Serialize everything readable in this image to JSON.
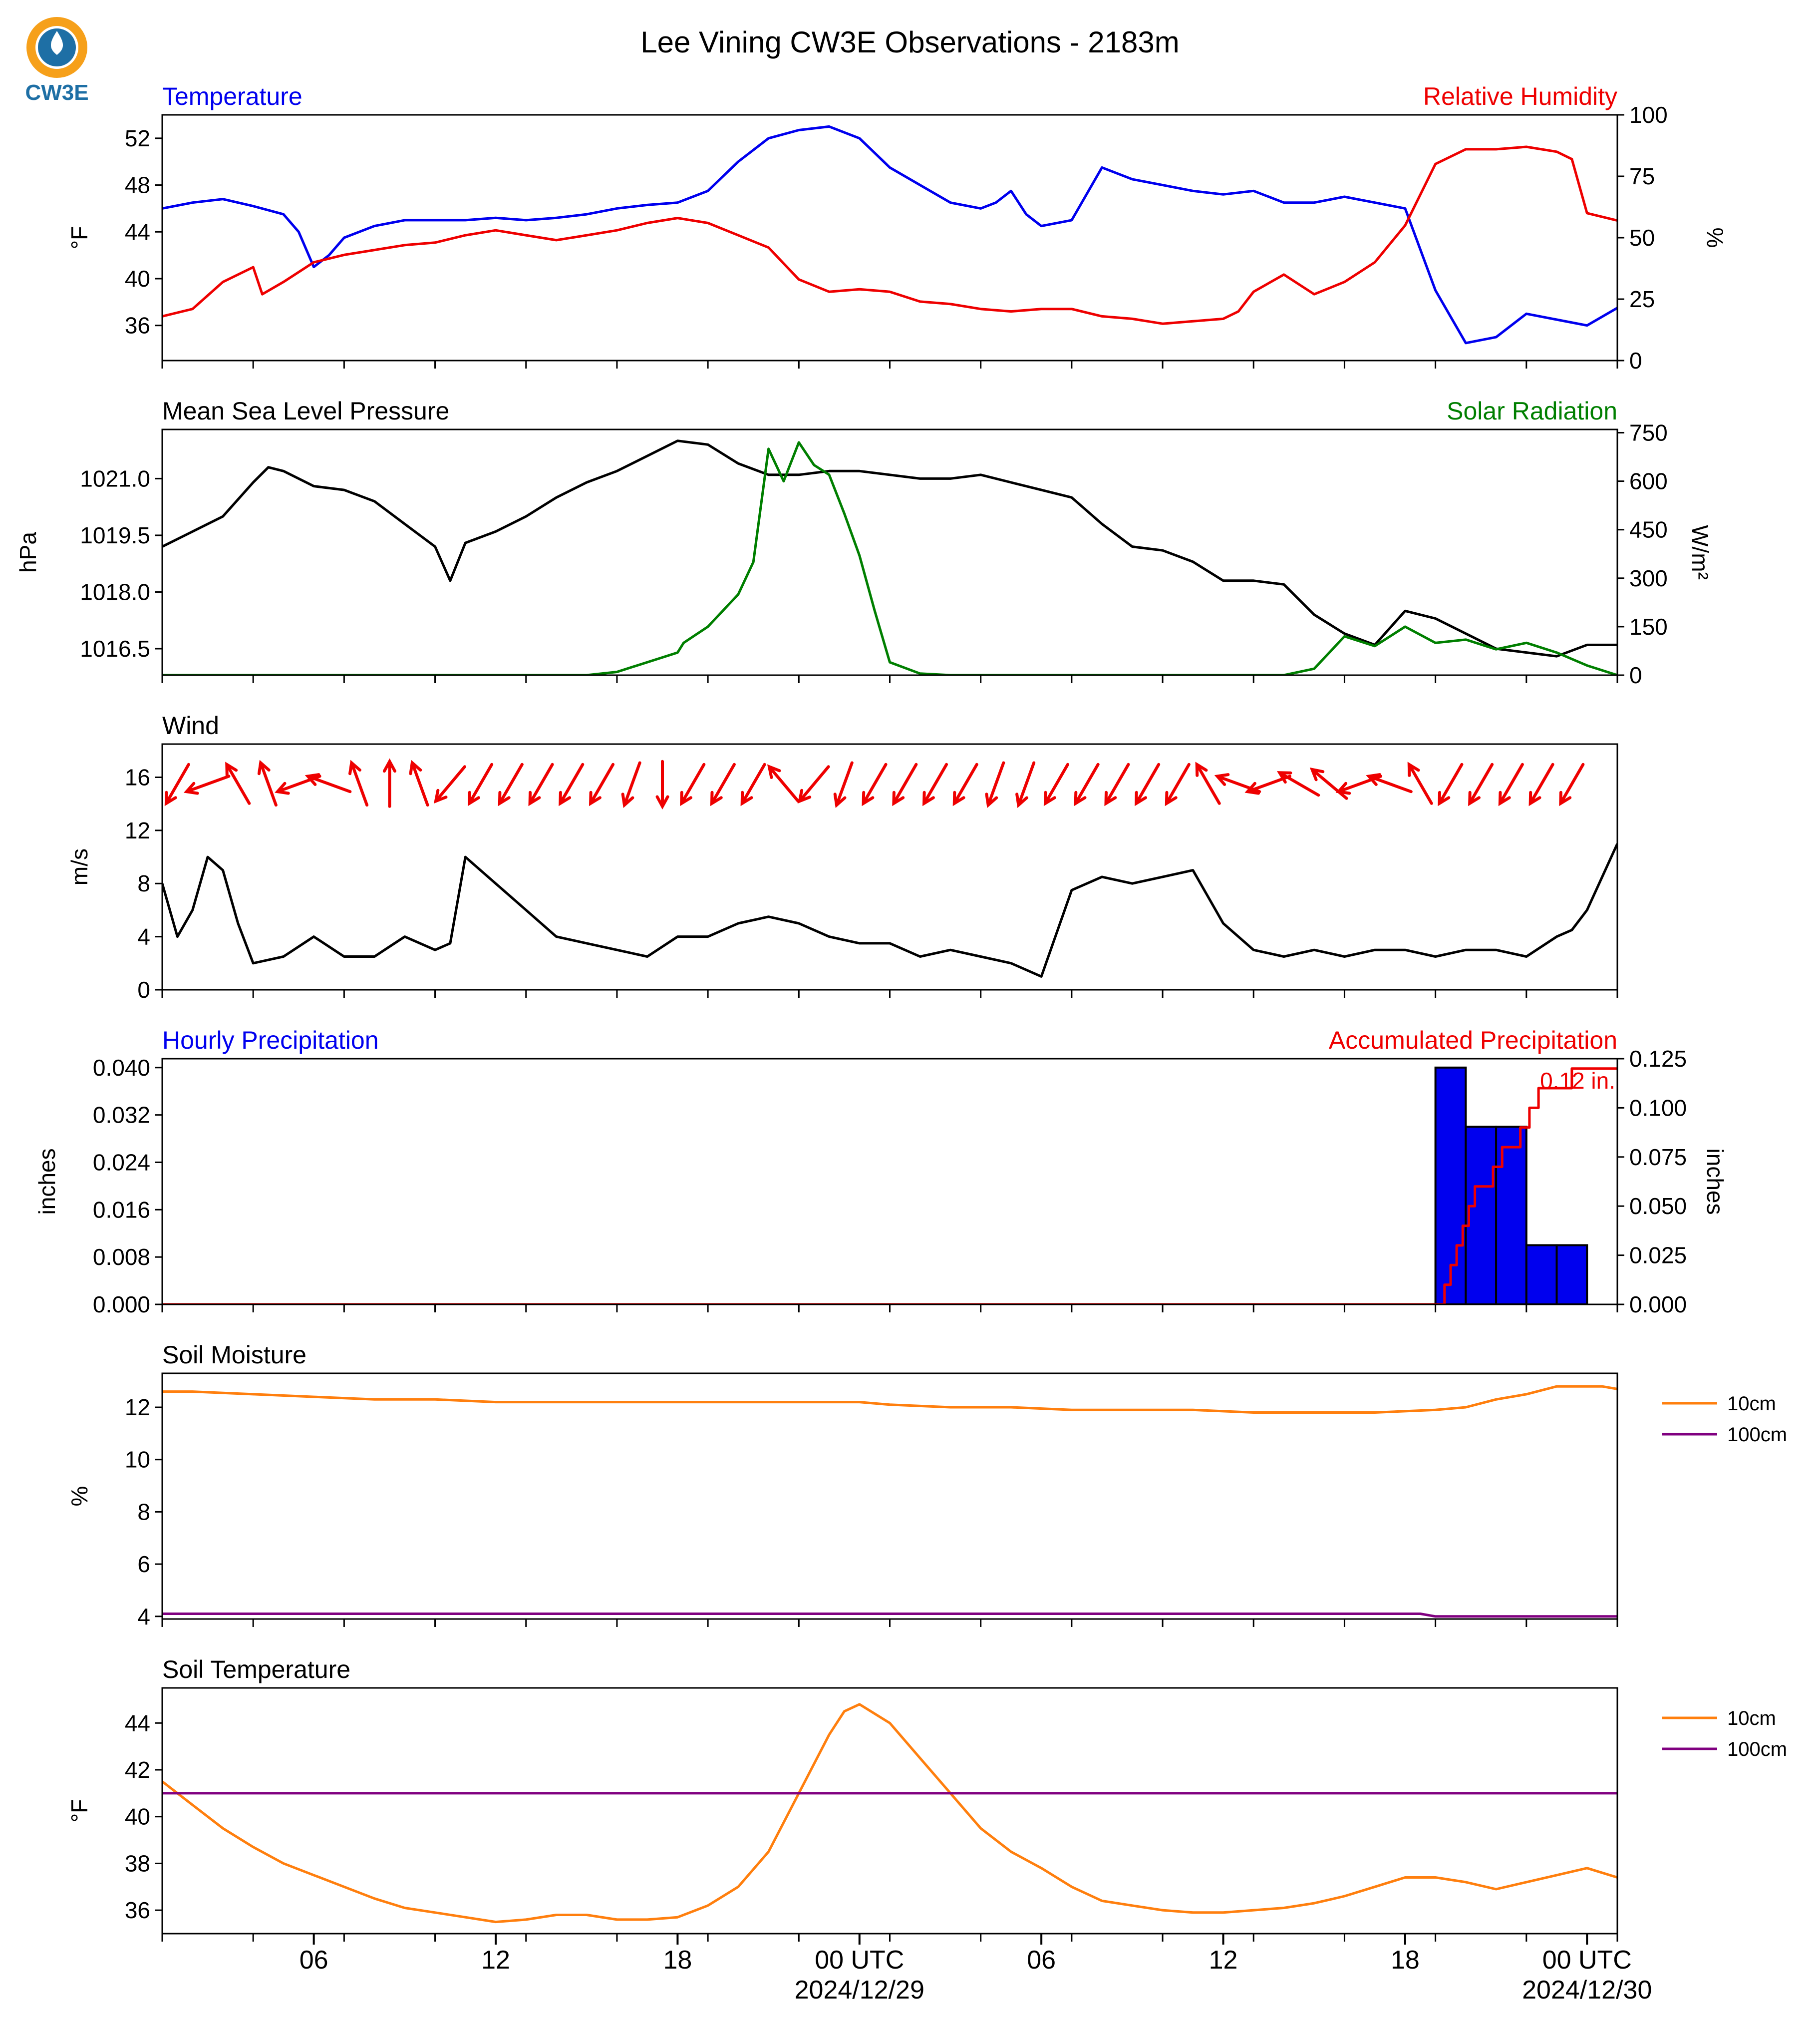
{
  "title": "Lee Vining CW3E Observations - 2183m",
  "logo_text": "CW3E",
  "colors": {
    "temperature": "#0000ee",
    "humidity": "#ee0000",
    "pressure": "#000000",
    "solar": "#007f00",
    "wind": "#000000",
    "wind_barb": "#ee0000",
    "hourly_precip_fill": "#0000ee",
    "accum_precip": "#ee0000",
    "soil_10cm": "#ff7f0e",
    "soil_100cm": "#800080",
    "logo_orange": "#f6a01a",
    "logo_blue": "#1e6fa5"
  },
  "x_axis": {
    "start_hour": 0,
    "end_hour": 48,
    "tick_labels": [
      {
        "hour": 5,
        "label": "06"
      },
      {
        "hour": 11,
        "label": "12"
      },
      {
        "hour": 17,
        "label": "18"
      },
      {
        "hour": 23,
        "label": "00 UTC",
        "sub": "2024/12/29"
      },
      {
        "hour": 29,
        "label": "06"
      },
      {
        "hour": 35,
        "label": "12"
      },
      {
        "hour": 41,
        "label": "18"
      },
      {
        "hour": 47,
        "label": "00 UTC",
        "sub": "2024/12/30"
      }
    ]
  },
  "chart_data": [
    {
      "type": "line",
      "left_title": "Temperature",
      "right_title": "Relative Humidity",
      "ylabel": "°F",
      "ylabel_right": "%",
      "ylim": [
        33,
        54
      ],
      "ylim_right": [
        0,
        100
      ],
      "yticks": [
        36,
        40,
        44,
        48,
        52
      ],
      "yticks_right": [
        0,
        25,
        50,
        75,
        100
      ],
      "series": [
        {
          "name": "Temperature",
          "axis": "left",
          "color_key": "temperature",
          "x": [
            0,
            1,
            2,
            3,
            4,
            4.5,
            5,
            5.5,
            6,
            7,
            8,
            9,
            10,
            11,
            12,
            13,
            14,
            15,
            16,
            17,
            18,
            19,
            20,
            21,
            22,
            23,
            24,
            25,
            26,
            27,
            27.5,
            28,
            28.5,
            29,
            30,
            31,
            32,
            33,
            34,
            35,
            36,
            37,
            38,
            39,
            40,
            41,
            42,
            43,
            44,
            45,
            46,
            47,
            48
          ],
          "y": [
            46,
            46.5,
            46.8,
            46.2,
            45.5,
            44,
            41,
            42,
            43.5,
            44.5,
            45,
            45,
            45,
            45.2,
            45,
            45.2,
            45.5,
            46,
            46.3,
            46.5,
            47.5,
            50,
            52,
            52.7,
            53,
            52,
            49.5,
            48,
            46.5,
            46,
            46.5,
            47.5,
            45.5,
            44.5,
            45,
            49.5,
            48.5,
            48,
            47.5,
            47.2,
            47.5,
            46.5,
            46.5,
            47,
            46.5,
            46,
            39,
            34.5,
            35,
            37,
            36.5,
            36,
            37.5
          ]
        },
        {
          "name": "Relative Humidity",
          "axis": "right",
          "color_key": "humidity",
          "x": [
            0,
            1,
            2,
            3,
            3.3,
            4,
            5,
            6,
            7,
            8,
            9,
            10,
            11,
            12,
            13,
            14,
            15,
            16,
            17,
            18,
            19,
            20,
            21,
            22,
            23,
            24,
            25,
            26,
            27,
            28,
            29,
            30,
            31,
            32,
            33,
            34,
            35,
            35.5,
            36,
            37,
            38,
            39,
            40,
            41,
            42,
            43,
            44,
            45,
            46,
            46.5,
            47,
            48
          ],
          "y": [
            18,
            21,
            32,
            38,
            27,
            32,
            40,
            43,
            45,
            47,
            48,
            51,
            53,
            51,
            49,
            51,
            53,
            56,
            58,
            56,
            51,
            46,
            33,
            28,
            29,
            28,
            24,
            23,
            21,
            20,
            21,
            21,
            18,
            17,
            15,
            16,
            17,
            20,
            28,
            35,
            27,
            32,
            40,
            55,
            80,
            86,
            86,
            87,
            85,
            82,
            60,
            57
          ]
        }
      ]
    },
    {
      "type": "line",
      "left_title": "Mean Sea Level Pressure",
      "right_title": "Solar Radiation",
      "ylabel": "hPa",
      "ylabel_right": "W/m²",
      "ylim": [
        1015.8,
        1022.3
      ],
      "ylim_right": [
        0,
        760
      ],
      "yticks": [
        1016.5,
        1018.0,
        1019.5,
        1021.0
      ],
      "yticks_right": [
        0,
        150,
        300,
        450,
        600,
        750
      ],
      "ytick_labels": [
        "1016.5",
        "1018.0",
        "1019.5",
        "1021.0"
      ],
      "series": [
        {
          "name": "Mean Sea Level Pressure",
          "axis": "left",
          "color_key": "pressure",
          "x": [
            0,
            1,
            2,
            3,
            3.5,
            4,
            5,
            6,
            7,
            8,
            9,
            9.5,
            10,
            11,
            12,
            13,
            14,
            15,
            16,
            17,
            18,
            19,
            20,
            21,
            22,
            23,
            24,
            25,
            26,
            27,
            28,
            29,
            30,
            31,
            32,
            33,
            34,
            35,
            36,
            37,
            38,
            39,
            40,
            41,
            42,
            43,
            44,
            45,
            46,
            47,
            48
          ],
          "y": [
            1019.2,
            1019.6,
            1020.0,
            1020.9,
            1021.3,
            1021.2,
            1020.8,
            1020.7,
            1020.4,
            1019.8,
            1019.2,
            1018.3,
            1019.3,
            1019.6,
            1020.0,
            1020.5,
            1020.9,
            1021.2,
            1021.6,
            1022.0,
            1021.9,
            1021.4,
            1021.1,
            1021.1,
            1021.2,
            1021.2,
            1021.1,
            1021.0,
            1021.0,
            1021.1,
            1020.9,
            1020.7,
            1020.5,
            1019.8,
            1019.2,
            1019.1,
            1018.8,
            1018.3,
            1018.3,
            1018.2,
            1017.4,
            1016.9,
            1016.6,
            1017.5,
            1017.3,
            1016.9,
            1016.5,
            1016.4,
            1016.3,
            1016.6,
            1016.6
          ]
        },
        {
          "name": "Solar Radiation",
          "axis": "right",
          "color_key": "solar",
          "x": [
            0,
            14,
            15,
            16,
            17,
            17.2,
            18,
            19,
            19.5,
            20,
            20.5,
            21,
            21.5,
            22,
            22.5,
            23,
            23.5,
            24,
            25,
            26,
            37,
            38,
            39,
            40,
            41,
            42,
            43,
            44,
            45,
            46,
            47,
            48
          ],
          "y": [
            0,
            0,
            10,
            40,
            70,
            100,
            150,
            250,
            350,
            700,
            600,
            720,
            650,
            620,
            500,
            370,
            200,
            40,
            5,
            0,
            0,
            20,
            120,
            90,
            150,
            100,
            110,
            80,
            100,
            70,
            30,
            0
          ]
        }
      ]
    },
    {
      "type": "line",
      "left_title": "Wind",
      "ylabel": "m/s",
      "ylim": [
        0,
        18.5
      ],
      "yticks": [
        0,
        4,
        8,
        12,
        16
      ],
      "barb_row_value": 15.5,
      "barb_dirs_deg": [
        60,
        20,
        300,
        290,
        20,
        340,
        290,
        270,
        290,
        50,
        60,
        60,
        60,
        60,
        60,
        70,
        90,
        60,
        60,
        60,
        310,
        50,
        70,
        60,
        60,
        60,
        60,
        70,
        70,
        60,
        60,
        60,
        60,
        60,
        300,
        340,
        20,
        330,
        320,
        20,
        340,
        300,
        60,
        60,
        60,
        60,
        60
      ],
      "series": [
        {
          "name": "Wind",
          "axis": "left",
          "color_key": "wind",
          "x": [
            0,
            0.5,
            1,
            1.5,
            2,
            2.5,
            3,
            4,
            5,
            6,
            7,
            8,
            9,
            9.5,
            10,
            11,
            12,
            13,
            14,
            15,
            16,
            17,
            18,
            19,
            20,
            21,
            22,
            23,
            24,
            25,
            26,
            27,
            28,
            29,
            30,
            31,
            32,
            33,
            34,
            35,
            36,
            37,
            38,
            39,
            40,
            41,
            42,
            43,
            44,
            45,
            46,
            46.5,
            47,
            48
          ],
          "y": [
            8,
            4,
            6,
            10,
            9,
            5,
            2,
            2.5,
            4,
            2.5,
            2.5,
            4,
            3,
            3.5,
            10,
            8,
            6,
            4,
            3.5,
            3,
            2.5,
            4,
            4,
            5,
            5.5,
            5,
            4,
            3.5,
            3.5,
            2.5,
            3,
            2.5,
            2,
            1,
            7.5,
            8.5,
            8,
            8.5,
            9,
            5,
            3,
            2.5,
            3,
            2.5,
            3,
            3,
            2.5,
            3,
            3,
            2.5,
            4,
            4.5,
            6,
            11
          ]
        }
      ]
    },
    {
      "type": "bar",
      "left_title": "Hourly Precipitation",
      "right_title": "Accumulated Precipitation",
      "ylabel": "inches",
      "ylabel_right": "inches",
      "ylim": [
        0,
        0.0415
      ],
      "ylim_right": [
        0,
        0.125
      ],
      "yticks": [
        0,
        0.008,
        0.016,
        0.024,
        0.032,
        0.04
      ],
      "ytick_labels": [
        "0.000",
        "0.008",
        "0.016",
        "0.024",
        "0.032",
        "0.040"
      ],
      "yticks_right": [
        0,
        0.025,
        0.05,
        0.075,
        0.1,
        0.125
      ],
      "ytick_labels_right": [
        "0.000",
        "0.025",
        "0.050",
        "0.075",
        "0.100",
        "0.125"
      ],
      "annotation": "0.12 in.",
      "bars": [
        {
          "start": 42,
          "end": 43,
          "value": 0.04
        },
        {
          "start": 43,
          "end": 44,
          "value": 0.03
        },
        {
          "start": 44,
          "end": 45,
          "value": 0.03
        },
        {
          "start": 45,
          "end": 46,
          "value": 0.01
        },
        {
          "start": 46,
          "end": 47,
          "value": 0.01
        }
      ],
      "series": [
        {
          "name": "Accumulated Precipitation",
          "axis": "right",
          "color_key": "accum_precip",
          "x": [
            0,
            42.2,
            42.3,
            42.5,
            42.7,
            42.9,
            43.1,
            43.3,
            43.6,
            43.9,
            44.2,
            44.5,
            44.8,
            45.1,
            45.4,
            46,
            46.5,
            47,
            48
          ],
          "y": [
            0,
            0,
            0.01,
            0.02,
            0.03,
            0.04,
            0.05,
            0.06,
            0.06,
            0.07,
            0.08,
            0.08,
            0.09,
            0.1,
            0.11,
            0.11,
            0.12,
            0.12,
            0.12
          ]
        }
      ]
    },
    {
      "type": "line",
      "left_title": "Soil Moisture",
      "ylabel": "%",
      "ylim": [
        3.9,
        13.3
      ],
      "yticks": [
        4,
        6,
        8,
        10,
        12
      ],
      "legend": [
        "10cm",
        "100cm"
      ],
      "series": [
        {
          "name": "10cm",
          "axis": "left",
          "color_key": "soil_10cm",
          "x": [
            0,
            1,
            3,
            5,
            7,
            8,
            9,
            11,
            13,
            15,
            17,
            19,
            21,
            23,
            24,
            26,
            28,
            30,
            32,
            34,
            36,
            38,
            40,
            42,
            43,
            44,
            45,
            46,
            47,
            47.5,
            48
          ],
          "y": [
            12.6,
            12.6,
            12.5,
            12.4,
            12.3,
            12.3,
            12.3,
            12.2,
            12.2,
            12.2,
            12.2,
            12.2,
            12.2,
            12.2,
            12.1,
            12.0,
            12.0,
            11.9,
            11.9,
            11.9,
            11.8,
            11.8,
            11.8,
            11.9,
            12.0,
            12.3,
            12.5,
            12.8,
            12.8,
            12.8,
            12.7
          ]
        },
        {
          "name": "100cm",
          "axis": "left",
          "color_key": "soil_100cm",
          "x": [
            0,
            10,
            20,
            30,
            40,
            41.5,
            42,
            48
          ],
          "y": [
            4.1,
            4.1,
            4.1,
            4.1,
            4.1,
            4.1,
            4.0,
            4.0
          ]
        }
      ]
    },
    {
      "type": "line",
      "left_title": "Soil Temperature",
      "ylabel": "°F",
      "ylim": [
        35.0,
        45.5
      ],
      "yticks": [
        36,
        38,
        40,
        42,
        44
      ],
      "legend": [
        "10cm",
        "100cm"
      ],
      "series": [
        {
          "name": "10cm",
          "axis": "left",
          "color_key": "soil_10cm",
          "x": [
            0,
            1,
            2,
            3,
            4,
            5,
            6,
            7,
            8,
            9,
            10,
            11,
            12,
            13,
            14,
            15,
            16,
            17,
            18,
            19,
            20,
            21,
            22,
            22.5,
            23,
            24,
            25,
            26,
            27,
            28,
            29,
            30,
            31,
            32,
            33,
            34,
            35,
            36,
            37,
            38,
            39,
            40,
            41,
            42,
            43,
            44,
            45,
            46,
            47,
            48
          ],
          "y": [
            41.5,
            40.5,
            39.5,
            38.7,
            38.0,
            37.5,
            37.0,
            36.5,
            36.1,
            35.9,
            35.7,
            35.5,
            35.6,
            35.8,
            35.8,
            35.6,
            35.6,
            35.7,
            36.2,
            37.0,
            38.5,
            41.0,
            43.5,
            44.5,
            44.8,
            44.0,
            42.5,
            41.0,
            39.5,
            38.5,
            37.8,
            37.0,
            36.4,
            36.2,
            36.0,
            35.9,
            35.9,
            36.0,
            36.1,
            36.3,
            36.6,
            37.0,
            37.4,
            37.4,
            37.2,
            36.9,
            37.2,
            37.5,
            37.8,
            37.4
          ]
        },
        {
          "name": "100cm",
          "axis": "left",
          "color_key": "soil_100cm",
          "x": [
            0,
            48
          ],
          "y": [
            41.0,
            41.0
          ]
        }
      ]
    }
  ]
}
